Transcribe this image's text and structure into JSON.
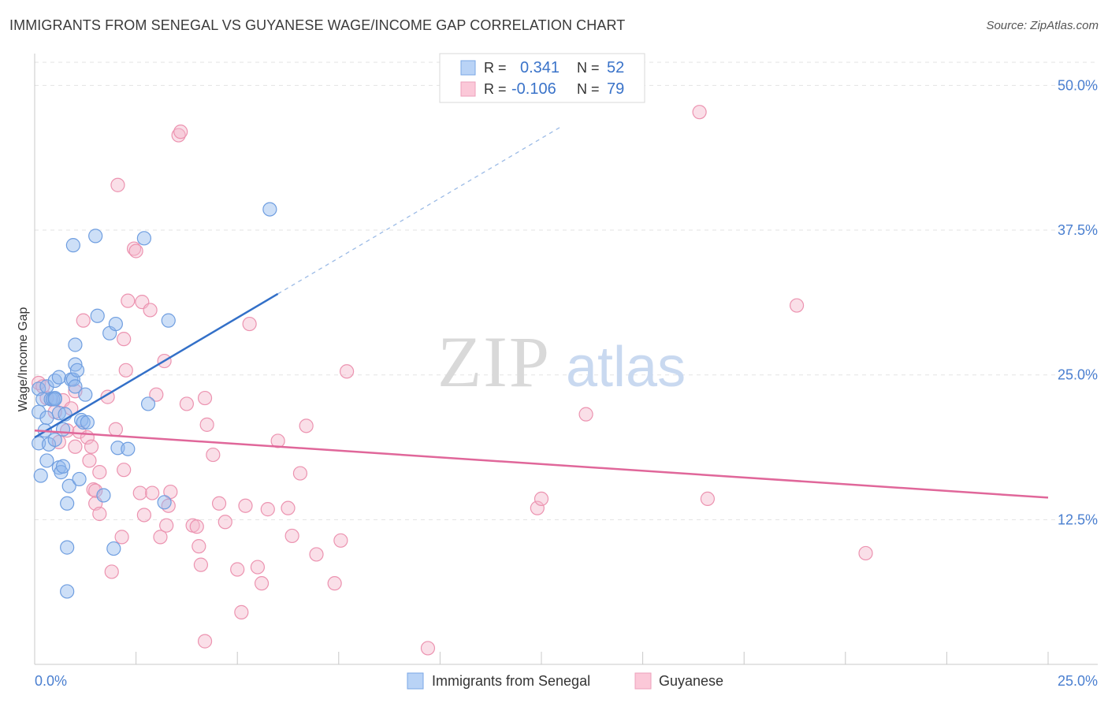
{
  "title": "IMMIGRANTS FROM SENEGAL VS GUYANESE WAGE/INCOME GAP CORRELATION CHART",
  "source": "Source: ZipAtlas.com",
  "watermark": {
    "zip": "ZIP",
    "atlas": "atlas"
  },
  "colors": {
    "blue": "#90b8ee",
    "blue_stroke": "#6f9ee0",
    "blue_line": "#3370c8",
    "pink": "#f5b7cb",
    "pink_stroke": "#ec93b0",
    "pink_line": "#e0679a",
    "axis_text": "#4a7fd0"
  },
  "legend_box": {
    "rows": [
      {
        "r_label": "R =",
        "r_value": "0.341",
        "n_label": "N =",
        "n_value": "52"
      },
      {
        "r_label": "R =",
        "r_value": "-0.106",
        "n_label": "N =",
        "n_value": "79"
      }
    ]
  },
  "bottom_legend": [
    "Immigrants from Senegal",
    "Guyanese"
  ],
  "chart_data": {
    "type": "scatter",
    "title": "IMMIGRANTS FROM SENEGAL VS GUYANESE WAGE/INCOME GAP CORRELATION CHART",
    "ylabel": "Wage/Income Gap",
    "xlabel": "",
    "xlim": [
      0,
      25
    ],
    "ylim": [
      0,
      52
    ],
    "x_tick_labels": [
      "0.0%",
      "25.0%"
    ],
    "y_tick_labels": [
      "12.5%",
      "25.0%",
      "37.5%",
      "50.0%"
    ],
    "y_ticks": [
      12.5,
      25.0,
      37.5,
      50.0
    ],
    "grid": true,
    "legend": "bottom-center",
    "series": [
      {
        "name": "Immigrants from Senegal",
        "r": 0.341,
        "n": 52,
        "trend": {
          "x0": 0,
          "y0": 19.6,
          "x1": 6.0,
          "y1": 32.0,
          "dashed_to_x": 13.0
        },
        "points": [
          [
            0.1,
            21.8
          ],
          [
            0.1,
            23.8
          ],
          [
            0.1,
            19.1
          ],
          [
            0.2,
            22.9
          ],
          [
            0.3,
            17.6
          ],
          [
            0.3,
            24.0
          ],
          [
            0.3,
            21.3
          ],
          [
            0.35,
            19.0
          ],
          [
            0.4,
            22.9
          ],
          [
            0.45,
            22.9
          ],
          [
            0.5,
            24.5
          ],
          [
            0.5,
            23.0
          ],
          [
            0.5,
            19.4
          ],
          [
            0.5,
            22.9
          ],
          [
            0.6,
            24.8
          ],
          [
            0.6,
            21.7
          ],
          [
            0.6,
            17.0
          ],
          [
            0.65,
            16.6
          ],
          [
            0.7,
            20.3
          ],
          [
            0.7,
            17.1
          ],
          [
            0.75,
            21.6
          ],
          [
            0.8,
            13.9
          ],
          [
            0.8,
            10.1
          ],
          [
            0.8,
            6.3
          ],
          [
            0.85,
            15.4
          ],
          [
            0.9,
            24.6
          ],
          [
            0.95,
            24.6
          ],
          [
            0.95,
            36.2
          ],
          [
            1.0,
            24.0
          ],
          [
            1.0,
            27.6
          ],
          [
            1.0,
            25.9
          ],
          [
            1.05,
            25.4
          ],
          [
            1.1,
            16.0
          ],
          [
            1.15,
            21.1
          ],
          [
            1.2,
            20.9
          ],
          [
            1.25,
            23.3
          ],
          [
            1.3,
            20.9
          ],
          [
            1.5,
            37.0
          ],
          [
            1.55,
            30.1
          ],
          [
            1.7,
            14.6
          ],
          [
            1.85,
            28.6
          ],
          [
            1.95,
            10.0
          ],
          [
            2.0,
            29.4
          ],
          [
            2.05,
            18.7
          ],
          [
            2.3,
            18.6
          ],
          [
            2.7,
            36.8
          ],
          [
            2.8,
            22.5
          ],
          [
            3.2,
            14.0
          ],
          [
            3.3,
            29.7
          ],
          [
            5.8,
            39.3
          ],
          [
            0.15,
            16.3
          ],
          [
            0.25,
            20.2
          ]
        ]
      },
      {
        "name": "Guyanese",
        "r": -0.106,
        "n": 79,
        "trend": {
          "x0": 0,
          "y0": 20.2,
          "x1": 25,
          "y1": 14.4
        },
        "points": [
          [
            0.1,
            24.3
          ],
          [
            0.2,
            24.0
          ],
          [
            0.3,
            23.0
          ],
          [
            0.5,
            21.8
          ],
          [
            0.6,
            19.2
          ],
          [
            0.7,
            22.8
          ],
          [
            0.8,
            20.2
          ],
          [
            0.9,
            22.1
          ],
          [
            1.0,
            18.8
          ],
          [
            1.0,
            23.6
          ],
          [
            1.1,
            20.1
          ],
          [
            1.2,
            29.7
          ],
          [
            1.3,
            19.6
          ],
          [
            1.35,
            17.6
          ],
          [
            1.4,
            18.8
          ],
          [
            1.45,
            15.1
          ],
          [
            1.5,
            13.9
          ],
          [
            1.5,
            15.0
          ],
          [
            1.6,
            16.6
          ],
          [
            1.8,
            23.1
          ],
          [
            1.9,
            8.0
          ],
          [
            2.0,
            20.3
          ],
          [
            2.05,
            41.4
          ],
          [
            2.15,
            11.0
          ],
          [
            2.2,
            16.8
          ],
          [
            2.2,
            28.1
          ],
          [
            2.25,
            25.4
          ],
          [
            2.3,
            31.4
          ],
          [
            2.45,
            35.9
          ],
          [
            2.5,
            35.7
          ],
          [
            2.6,
            14.8
          ],
          [
            2.65,
            31.3
          ],
          [
            2.7,
            12.9
          ],
          [
            2.85,
            30.6
          ],
          [
            2.9,
            14.8
          ],
          [
            3.0,
            23.3
          ],
          [
            3.1,
            11.0
          ],
          [
            3.2,
            26.2
          ],
          [
            3.25,
            12.0
          ],
          [
            3.3,
            13.7
          ],
          [
            3.35,
            14.9
          ],
          [
            3.55,
            45.7
          ],
          [
            3.6,
            46.0
          ],
          [
            3.75,
            22.5
          ],
          [
            3.9,
            12.0
          ],
          [
            4.0,
            11.9
          ],
          [
            4.05,
            10.2
          ],
          [
            4.1,
            8.6
          ],
          [
            4.2,
            23.0
          ],
          [
            4.25,
            20.7
          ],
          [
            4.4,
            18.1
          ],
          [
            4.55,
            13.9
          ],
          [
            4.7,
            12.3
          ],
          [
            5.0,
            8.2
          ],
          [
            5.1,
            4.5
          ],
          [
            5.2,
            13.7
          ],
          [
            5.3,
            29.4
          ],
          [
            5.5,
            8.4
          ],
          [
            5.6,
            7.0
          ],
          [
            5.75,
            13.4
          ],
          [
            6.0,
            19.3
          ],
          [
            6.25,
            13.5
          ],
          [
            6.35,
            11.1
          ],
          [
            6.55,
            16.5
          ],
          [
            6.7,
            20.6
          ],
          [
            6.95,
            9.5
          ],
          [
            7.4,
            7.0
          ],
          [
            7.55,
            10.7
          ],
          [
            7.7,
            25.3
          ],
          [
            9.7,
            1.4
          ],
          [
            12.4,
            13.5
          ],
          [
            12.5,
            14.3
          ],
          [
            13.6,
            21.6
          ],
          [
            16.4,
            47.7
          ],
          [
            16.6,
            14.3
          ],
          [
            18.8,
            31.0
          ],
          [
            20.5,
            9.6
          ],
          [
            4.2,
            2.0
          ],
          [
            1.6,
            13.0
          ]
        ]
      }
    ]
  }
}
